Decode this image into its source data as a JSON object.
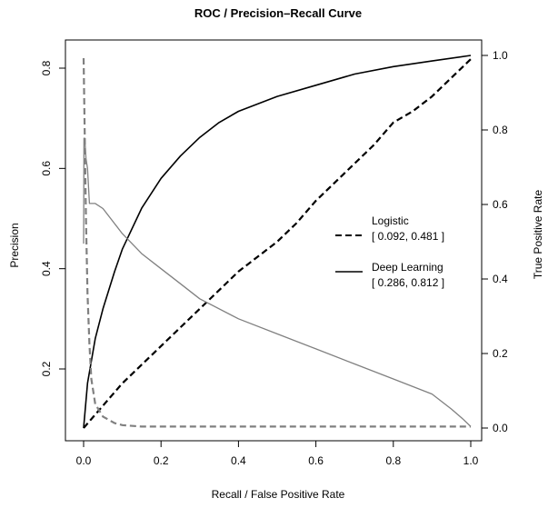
{
  "chart_data": {
    "type": "line",
    "title": "ROC / Precision–Recall Curve",
    "xlabel": "Recall / False Positive Rate",
    "ylabel_left": "Precision",
    "ylabel_right": "True Positive Rate",
    "xlim": [
      0,
      1
    ],
    "ylim_left": [
      0.08,
      0.83
    ],
    "ylim_right": [
      0,
      1
    ],
    "x_ticks": [
      "0.0",
      "0.2",
      "0.4",
      "0.6",
      "0.8",
      "1.0"
    ],
    "left_ticks": [
      "0.2",
      "0.4",
      "0.6",
      "0.8"
    ],
    "right_ticks": [
      "0.0",
      "0.2",
      "0.4",
      "0.6",
      "0.8",
      "1.0"
    ],
    "grid": false,
    "legend": {
      "position": "right",
      "entries": [
        {
          "label": "Logistic",
          "sublabel": "[ 0.092, 0.481 ]",
          "dash": "dashed"
        },
        {
          "label": "Deep Learning",
          "sublabel": "[ 0.286, 0.812 ]",
          "dash": "solid"
        }
      ]
    },
    "series": [
      {
        "name": "Logistic",
        "role": "ROC",
        "axis": "right",
        "color": "#000000",
        "dash": "dashed",
        "x": [
          0,
          0.05,
          0.1,
          0.15,
          0.2,
          0.25,
          0.3,
          0.35,
          0.4,
          0.45,
          0.5,
          0.55,
          0.6,
          0.65,
          0.7,
          0.75,
          0.8,
          0.85,
          0.9,
          0.95,
          0.98,
          1.0
        ],
        "y": [
          0,
          0.06,
          0.12,
          0.17,
          0.22,
          0.27,
          0.32,
          0.37,
          0.42,
          0.46,
          0.5,
          0.55,
          0.61,
          0.66,
          0.71,
          0.76,
          0.82,
          0.85,
          0.89,
          0.94,
          0.97,
          0.99
        ]
      },
      {
        "name": "Deep Learning",
        "role": "ROC",
        "axis": "right",
        "color": "#000000",
        "dash": "solid",
        "x": [
          0,
          0.01,
          0.03,
          0.05,
          0.08,
          0.1,
          0.15,
          0.2,
          0.25,
          0.3,
          0.35,
          0.4,
          0.5,
          0.6,
          0.7,
          0.8,
          0.9,
          1.0
        ],
        "y": [
          0,
          0.12,
          0.24,
          0.32,
          0.42,
          0.48,
          0.59,
          0.67,
          0.73,
          0.78,
          0.82,
          0.85,
          0.89,
          0.92,
          0.95,
          0.97,
          0.985,
          1.0
        ]
      },
      {
        "name": "Logistic",
        "role": "Precision-Recall",
        "axis": "left",
        "color": "#808080",
        "dash": "dashed",
        "x": [
          0,
          0.003,
          0.006,
          0.01,
          0.015,
          0.02,
          0.03,
          0.05,
          0.08,
          0.1,
          0.15,
          0.2,
          0.4,
          0.6,
          0.8,
          1.0
        ],
        "y": [
          0.82,
          0.66,
          0.5,
          0.35,
          0.25,
          0.18,
          0.13,
          0.105,
          0.092,
          0.088,
          0.085,
          0.085,
          0.085,
          0.085,
          0.085,
          0.085
        ]
      },
      {
        "name": "Deep Learning",
        "role": "Precision-Recall",
        "axis": "left",
        "color": "#808080",
        "dash": "solid",
        "x": [
          0,
          0.001,
          0.003,
          0.006,
          0.01,
          0.015,
          0.03,
          0.05,
          0.07,
          0.1,
          0.15,
          0.2,
          0.25,
          0.3,
          0.4,
          0.5,
          0.6,
          0.7,
          0.8,
          0.9,
          0.95,
          0.98,
          1.0
        ],
        "y": [
          0.45,
          0.66,
          0.66,
          0.62,
          0.6,
          0.53,
          0.53,
          0.52,
          0.5,
          0.47,
          0.43,
          0.4,
          0.37,
          0.34,
          0.3,
          0.27,
          0.24,
          0.21,
          0.18,
          0.15,
          0.12,
          0.1,
          0.085
        ]
      }
    ]
  }
}
